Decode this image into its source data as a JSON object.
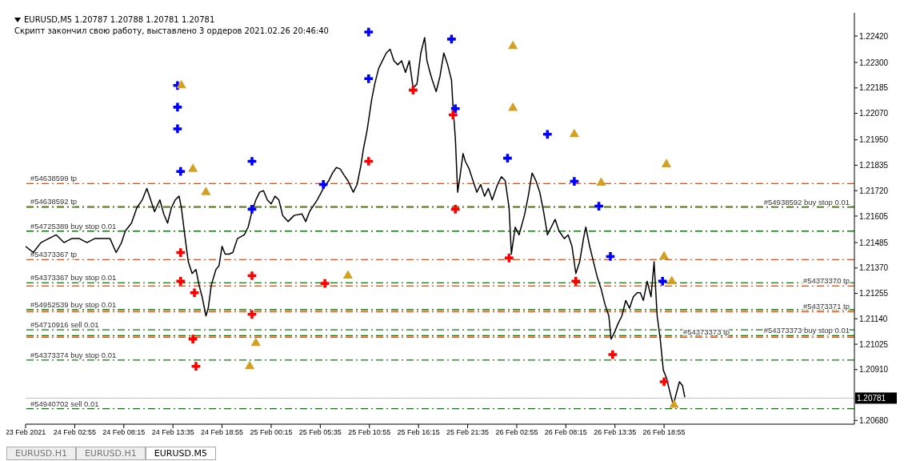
{
  "chart_data": {
    "type": "line",
    "title": "EURUSD,M5  1.20787 1.20788 1.20781 1.20781",
    "subtitle": "Скрипт закончил свою работу, выставлено 3 ордеров  2021.02.26 20:46:40",
    "annotations": [
      "EURUSD.H1",
      "EURUSD.H1",
      "EURUSD.M5"
    ],
    "xlim": [
      "2021-02-23T21:35",
      "2021-02-27T15:35"
    ],
    "xticks": [
      {
        "value": "2021-02-23T21:35",
        "label": "23 Feb 2021"
      },
      {
        "value": "2021-02-24T02:55",
        "label": "24 Feb 02:55"
      },
      {
        "value": "2021-02-24T08:15",
        "label": "24 Feb 08:15"
      },
      {
        "value": "2021-02-24T13:35",
        "label": "24 Feb 13:35"
      },
      {
        "value": "2021-02-24T18:55",
        "label": "24 Feb 18:55"
      },
      {
        "value": "2021-02-25T00:15",
        "label": "25 Feb 00:15"
      },
      {
        "value": "2021-02-25T05:35",
        "label": "25 Feb 05:35"
      },
      {
        "value": "2021-02-25T10:55",
        "label": "25 Feb 10:55"
      },
      {
        "value": "2021-02-25T16:15",
        "label": "25 Feb 16:15"
      },
      {
        "value": "2021-02-25T21:35",
        "label": "25 Feb 21:35"
      },
      {
        "value": "2021-02-26T02:55",
        "label": "26 Feb 02:55"
      },
      {
        "value": "2021-02-26T08:15",
        "label": "26 Feb 08:15"
      },
      {
        "value": "2021-02-26T13:35",
        "label": "26 Feb 13:35"
      },
      {
        "value": "2021-02-26T18:55",
        "label": "26 Feb 18:55"
      }
    ],
    "ylim": [
      1.20663,
      1.22525
    ],
    "yticks": [
      {
        "value": 1.2242,
        "label": "1.22420"
      },
      {
        "value": 1.223,
        "label": "1.22300"
      },
      {
        "value": 1.22185,
        "label": "1.22185"
      },
      {
        "value": 1.2207,
        "label": "1.22070"
      },
      {
        "value": 1.2195,
        "label": "1.21950"
      },
      {
        "value": 1.21835,
        "label": "1.21835"
      },
      {
        "value": 1.2172,
        "label": "1.21720"
      },
      {
        "value": 1.21605,
        "label": "1.21605"
      },
      {
        "value": 1.21485,
        "label": "1.21485"
      },
      {
        "value": 1.2137,
        "label": "1.21370"
      },
      {
        "value": 1.21255,
        "label": "1.21255"
      },
      {
        "value": 1.2114,
        "label": "1.21140"
      },
      {
        "value": 1.21025,
        "label": "1.21025"
      },
      {
        "value": 1.2091,
        "label": "1.20910"
      },
      {
        "value": 1.2068,
        "label": "1.20680"
      }
    ],
    "grid": false,
    "series": [
      {
        "color": "#000000",
        "marker": "none",
        "line_style": "solid",
        "x": [
          "2021-02-23T21:35",
          "2021-02-23T22:25",
          "2021-02-23T23:15",
          "2021-02-24T00:05",
          "2021-02-24T00:55",
          "2021-02-24T01:45",
          "2021-02-24T02:35",
          "2021-02-24T03:25",
          "2021-02-24T04:15",
          "2021-02-24T05:05",
          "2021-02-24T05:55",
          "2021-02-24T06:45",
          "2021-02-24T07:25",
          "2021-02-24T08:00",
          "2021-02-24T08:25",
          "2021-02-24T09:05",
          "2021-02-24T09:40",
          "2021-02-24T10:15",
          "2021-02-24T10:45",
          "2021-02-24T11:10",
          "2021-02-24T11:35",
          "2021-02-24T12:10",
          "2021-02-24T12:35",
          "2021-02-24T13:00",
          "2021-02-24T13:25",
          "2021-02-24T13:50",
          "2021-02-24T14:15",
          "2021-02-24T14:30",
          "2021-02-24T14:55",
          "2021-02-24T15:15",
          "2021-02-24T15:40",
          "2021-02-24T16:05",
          "2021-02-24T16:25",
          "2021-02-24T16:45",
          "2021-02-24T17:10",
          "2021-02-24T17:25",
          "2021-02-24T17:45",
          "2021-02-24T18:15",
          "2021-02-24T18:35",
          "2021-02-24T18:55",
          "2021-02-24T19:15",
          "2021-02-24T19:40",
          "2021-02-24T20:05",
          "2021-02-24T20:35",
          "2021-02-24T21:20",
          "2021-02-24T21:45",
          "2021-02-24T22:10",
          "2021-02-24T22:35",
          "2021-02-24T23:00",
          "2021-02-24T23:25",
          "2021-02-24T23:50",
          "2021-02-25T00:15",
          "2021-02-25T00:40",
          "2021-02-25T01:05",
          "2021-02-25T01:30",
          "2021-02-25T02:05",
          "2021-02-25T02:45",
          "2021-02-25T03:35",
          "2021-02-25T04:00",
          "2021-02-25T04:25",
          "2021-02-25T05:15",
          "2021-02-25T05:55",
          "2021-02-25T06:30",
          "2021-02-25T06:55",
          "2021-02-25T07:20",
          "2021-02-25T07:45",
          "2021-02-25T08:10",
          "2021-02-25T08:35",
          "2021-02-25T09:10",
          "2021-02-25T09:35",
          "2021-02-25T10:00",
          "2021-02-25T10:15",
          "2021-02-25T10:40",
          "2021-02-25T10:55",
          "2021-02-25T11:10",
          "2021-02-25T11:30",
          "2021-02-25T11:55",
          "2021-02-25T12:20",
          "2021-02-25T12:45",
          "2021-02-25T13:10",
          "2021-02-25T13:35",
          "2021-02-25T14:00",
          "2021-02-25T14:25",
          "2021-02-25T14:50",
          "2021-02-25T15:15",
          "2021-02-25T15:40",
          "2021-02-25T16:05",
          "2021-02-25T16:30",
          "2021-02-25T16:55",
          "2021-02-25T17:10",
          "2021-02-25T17:30",
          "2021-02-25T17:45",
          "2021-02-25T18:10",
          "2021-02-25T18:35",
          "2021-02-25T19:00",
          "2021-02-25T19:25",
          "2021-02-25T19:50",
          "2021-02-25T20:00",
          "2021-02-25T20:15",
          "2021-02-25T20:30",
          "2021-02-25T20:45",
          "2021-02-25T21:05",
          "2021-02-25T21:20",
          "2021-02-25T21:45",
          "2021-02-25T22:10",
          "2021-02-25T22:35",
          "2021-02-25T23:00",
          "2021-02-25T23:25",
          "2021-02-25T23:50",
          "2021-02-26T00:15",
          "2021-02-26T00:50",
          "2021-02-26T01:15",
          "2021-02-26T01:40",
          "2021-02-26T02:05",
          "2021-02-26T02:20",
          "2021-02-26T02:45",
          "2021-02-26T03:10",
          "2021-02-26T03:45",
          "2021-02-26T04:10",
          "2021-02-26T04:35",
          "2021-02-26T05:00",
          "2021-02-26T05:25",
          "2021-02-26T05:50",
          "2021-02-26T06:15",
          "2021-02-26T06:40",
          "2021-02-26T07:05",
          "2021-02-26T07:30",
          "2021-02-26T08:05",
          "2021-02-26T08:30",
          "2021-02-26T08:55",
          "2021-02-26T09:20",
          "2021-02-26T09:45",
          "2021-02-26T10:10",
          "2021-02-26T10:25",
          "2021-02-26T10:50",
          "2021-02-26T11:15",
          "2021-02-26T11:40",
          "2021-02-26T12:05",
          "2021-02-26T12:30",
          "2021-02-26T12:55",
          "2021-02-26T13:10",
          "2021-02-26T13:35",
          "2021-02-26T13:55",
          "2021-02-26T14:20",
          "2021-02-26T14:45",
          "2021-02-26T15:10",
          "2021-02-26T15:35",
          "2021-02-26T16:00",
          "2021-02-26T16:20",
          "2021-02-26T16:40",
          "2021-02-26T17:05",
          "2021-02-26T17:30",
          "2021-02-26T17:50",
          "2021-02-26T18:10",
          "2021-02-26T18:30",
          "2021-02-26T18:50",
          "2021-02-26T19:10",
          "2021-02-26T19:35",
          "2021-02-26T19:55",
          "2021-02-26T20:15",
          "2021-02-26T20:35",
          "2021-02-26T20:55",
          "2021-02-26T21:10"
        ],
        "values": [
          1.21468,
          1.2144,
          1.21485,
          1.21503,
          1.2152,
          1.21485,
          1.21503,
          1.21503,
          1.21485,
          1.21503,
          1.21503,
          1.21503,
          1.2144,
          1.21485,
          1.21538,
          1.21573,
          1.21643,
          1.21678,
          1.2173,
          1.21678,
          1.21625,
          1.21678,
          1.21615,
          1.21573,
          1.21643,
          1.21678,
          1.21695,
          1.21643,
          1.21503,
          1.21398,
          1.21345,
          1.21363,
          1.21293,
          1.2124,
          1.21153,
          1.21188,
          1.21293,
          1.21363,
          1.2138,
          1.21468,
          1.21433,
          1.21433,
          1.2144,
          1.21503,
          1.2152,
          1.21555,
          1.21625,
          1.21678,
          1.21713,
          1.2172,
          1.21678,
          1.2166,
          1.21695,
          1.21678,
          1.21608,
          1.2158,
          1.21608,
          1.21615,
          1.2158,
          1.21625,
          1.21678,
          1.2173,
          1.21765,
          1.218,
          1.21825,
          1.21818,
          1.2179,
          1.21765,
          1.21713,
          1.21748,
          1.21835,
          1.21905,
          1.21993,
          1.22063,
          1.22133,
          1.22203,
          1.22273,
          1.22308,
          1.22343,
          1.2236,
          1.22308,
          1.2229,
          1.22308,
          1.22255,
          1.22308,
          1.22185,
          1.22203,
          1.22343,
          1.22413,
          1.22308,
          1.22255,
          1.2222,
          1.22168,
          1.22238,
          1.22343,
          1.2229,
          1.2222,
          1.22098,
          1.21958,
          1.21713,
          1.21783,
          1.21888,
          1.21853,
          1.21818,
          1.21765,
          1.21713,
          1.21748,
          1.21695,
          1.2173,
          1.21678,
          1.21748,
          1.21783,
          1.21765,
          1.21643,
          1.21433,
          1.21555,
          1.2152,
          1.21608,
          1.21695,
          1.218,
          1.21765,
          1.21713,
          1.21625,
          1.2152,
          1.21555,
          1.2159,
          1.21538,
          1.21503,
          1.2152,
          1.21468,
          1.21345,
          1.21398,
          1.21503,
          1.21555,
          1.21468,
          1.21398,
          1.21328,
          1.21275,
          1.21205,
          1.21153,
          1.21048,
          1.21083,
          1.21118,
          1.21153,
          1.21223,
          1.21188,
          1.2124,
          1.21258,
          1.21258,
          1.21223,
          1.2131,
          1.2124,
          1.21398,
          1.21153,
          1.21048,
          1.20908,
          1.20873,
          1.20803,
          1.2075,
          1.20803,
          1.20855,
          1.20838,
          1.20785
        ]
      },
      {
        "type": "scatter",
        "color": "#0000ff",
        "marker": "cross",
        "x": [
          "2021-02-24T14:05",
          "2021-02-24T14:05",
          "2021-02-24T14:05",
          "2021-02-24T14:25",
          "2021-02-24T22:10",
          "2021-02-24T22:10",
          "2021-02-25T05:55",
          "2021-02-25T10:50",
          "2021-02-25T10:50",
          "2021-02-25T19:50",
          "2021-02-25T20:15",
          "2021-02-26T01:55",
          "2021-02-26T06:15",
          "2021-02-26T09:10",
          "2021-02-26T11:50",
          "2021-02-26T13:05",
          "2021-02-26T18:45"
        ],
        "values": [
          1.22196,
          1.22098,
          1.22,
          1.21807,
          1.21853,
          1.21636,
          1.21748,
          1.22438,
          1.22227,
          1.22406,
          1.22091,
          1.21867,
          1.21975,
          1.21762,
          1.2165,
          1.21422,
          1.2131
        ]
      },
      {
        "type": "scatter",
        "color": "#ff0000",
        "marker": "cross",
        "x": [
          "2021-02-24T14:25",
          "2021-02-24T14:25",
          "2021-02-24T15:55",
          "2021-02-24T22:10",
          "2021-02-24T22:10",
          "2021-02-24T15:45",
          "2021-02-24T16:05",
          "2021-02-25T06:05",
          "2021-02-25T10:50",
          "2021-02-25T15:40",
          "2021-02-25T20:00",
          "2021-02-25T20:15",
          "2021-02-26T02:05",
          "2021-02-26T09:20",
          "2021-02-26T13:20",
          "2021-02-26T18:55"
        ],
        "values": [
          1.2144,
          1.2131,
          1.21258,
          1.21335,
          1.2116,
          1.21048,
          1.20925,
          1.213,
          1.21853,
          1.22175,
          1.22063,
          1.21636,
          1.21415,
          1.2131,
          1.20978,
          1.20855
        ]
      },
      {
        "type": "scatter",
        "color": "#d4a020",
        "marker": "triangle",
        "x": [
          "2021-02-24T14:30",
          "2021-02-24T15:45",
          "2021-02-24T17:10",
          "2021-02-24T22:35",
          "2021-02-24T21:55",
          "2021-02-25T08:35",
          "2021-02-26T02:30",
          "2021-02-26T02:30",
          "2021-02-26T09:10",
          "2021-02-26T19:10",
          "2021-02-26T12:05",
          "2021-02-26T18:55",
          "2021-02-26T19:45",
          "2021-02-26T20:00"
        ],
        "values": [
          1.22196,
          1.21818,
          1.21713,
          1.2103,
          1.20925,
          1.21335,
          1.22374,
          1.22094,
          1.21975,
          1.21839,
          1.21755,
          1.21422,
          1.2131,
          1.2075
        ]
      }
    ],
    "ref_lines": [
      {
        "axis": "y",
        "value": 1.21752,
        "label": "#54638599 tp",
        "color": "#ff4500",
        "line_style": "dashed"
      },
      {
        "axis": "y",
        "value": 1.21648,
        "label": "#54638592 tp",
        "color": "#ff4500",
        "line_style": "dashed"
      },
      {
        "axis": "y",
        "value": 1.21645,
        "label": "#54938592 buy stop 0.01",
        "color": "#008000",
        "line_style": "dashed"
      },
      {
        "axis": "y",
        "value": 1.21537,
        "label": "#54725389 buy stop 0.01",
        "color": "#008000",
        "line_style": "dashed"
      },
      {
        "axis": "y",
        "value": 1.21408,
        "label": "#54373367 tp",
        "color": "#ff4500",
        "line_style": "dashed"
      },
      {
        "axis": "y",
        "value": 1.21303,
        "label": "#54373367 buy stop 0.01",
        "color": "#008000",
        "line_style": "dashed"
      },
      {
        "axis": "y",
        "value": 1.21288,
        "label": "#54373370 tp",
        "color": "#ff4500",
        "line_style": "dashed"
      },
      {
        "axis": "y",
        "value": 1.21181,
        "label": "#54952539 buy stop 0.01",
        "color": "#008000",
        "line_style": "dashed"
      },
      {
        "axis": "y",
        "value": 1.21172,
        "label": "#54373371 tp",
        "color": "#ff4500",
        "line_style": "dashed"
      },
      {
        "axis": "y",
        "value": 1.2109,
        "label": "#54710916 sell 0.01",
        "color": "#008000",
        "line_style": "dashed"
      },
      {
        "axis": "y",
        "value": 1.21064,
        "label": "#54373373 buy stop 0.01",
        "color": "#008000",
        "line_style": "dashed"
      },
      {
        "axis": "y",
        "value": 1.21057,
        "label": "#54373373 tp",
        "color": "#ff4500",
        "line_style": "dashed"
      },
      {
        "axis": "y",
        "value": 1.20953,
        "label": "#54373374 buy stop 0.01",
        "color": "#008000",
        "line_style": "dashed"
      },
      {
        "axis": "y",
        "value": 1.20781,
        "label": "1.20781",
        "color": "#c0c0c0",
        "line_style": "solid"
      },
      {
        "axis": "y",
        "value": 1.20733,
        "label": "#54940702 sell 0.01",
        "color": "#008000",
        "line_style": "dashed"
      }
    ]
  }
}
